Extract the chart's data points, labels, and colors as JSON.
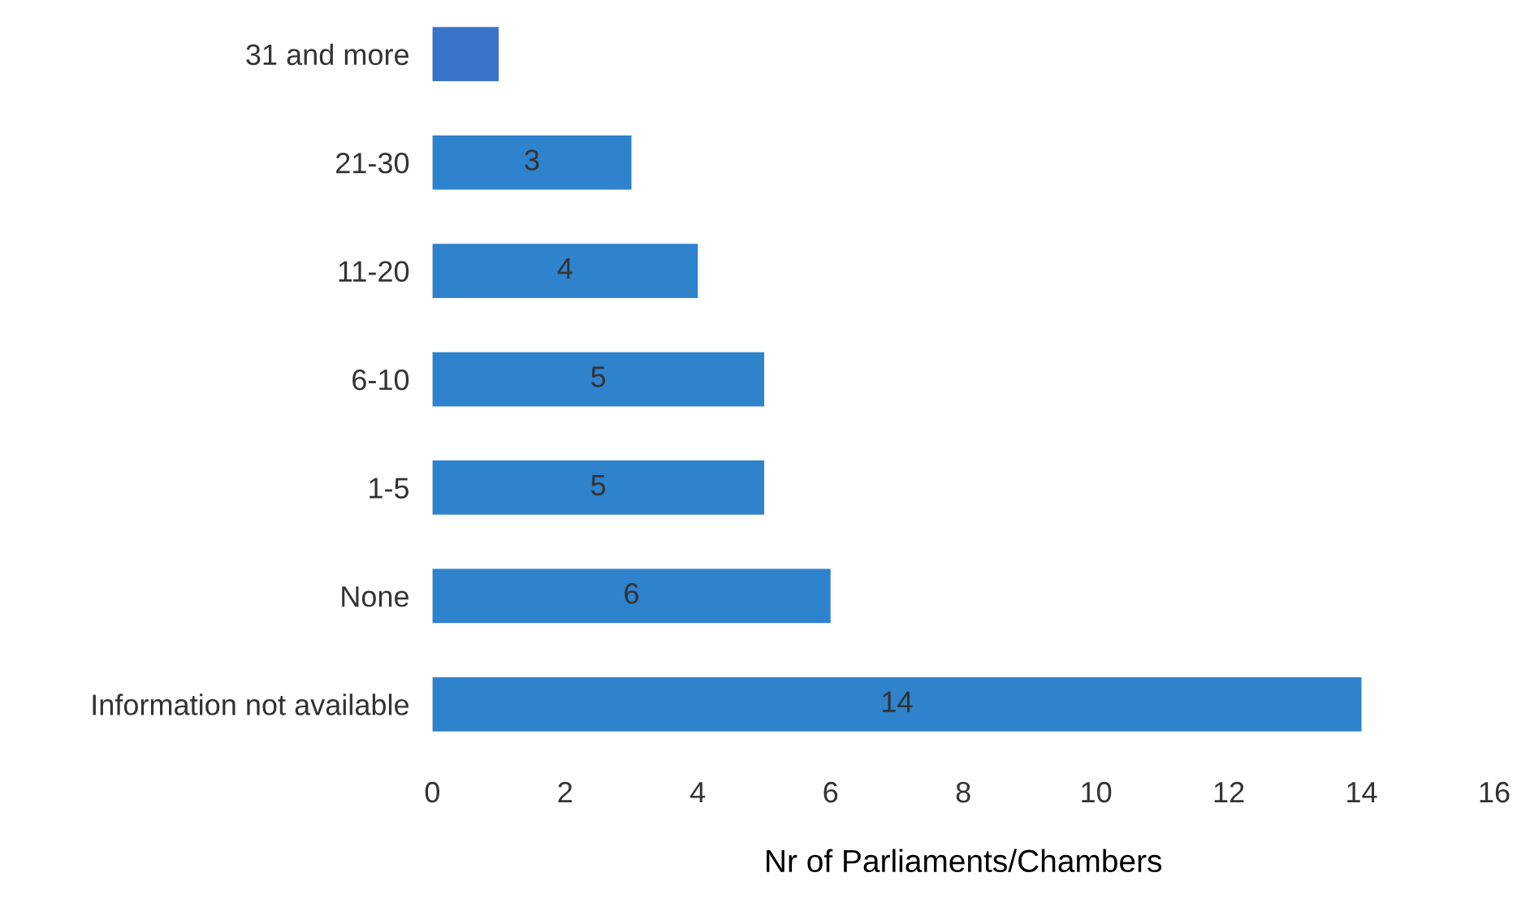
{
  "chart_data": {
    "type": "bar",
    "orientation": "horizontal",
    "categories": [
      "31 and more",
      "21-30",
      "11-20",
      "6-10",
      "1-5",
      "None",
      "Information not available"
    ],
    "values": [
      1,
      3,
      4,
      5,
      5,
      6,
      14
    ],
    "colors": [
      "#3a74c8",
      "#2f82cc",
      "#2f82cc",
      "#2f82cc",
      "#2f82cc",
      "#2f82cc",
      "#2f82cc"
    ],
    "value_labels": [
      null,
      "3",
      "4",
      "5",
      "5",
      "6",
      "14"
    ],
    "xlabel": "Nr of Parliaments/Chambers",
    "xlim": [
      0,
      16
    ],
    "xticks": [
      0,
      2,
      4,
      6,
      8,
      10,
      12,
      14,
      16
    ],
    "grid": false,
    "legend": false
  }
}
